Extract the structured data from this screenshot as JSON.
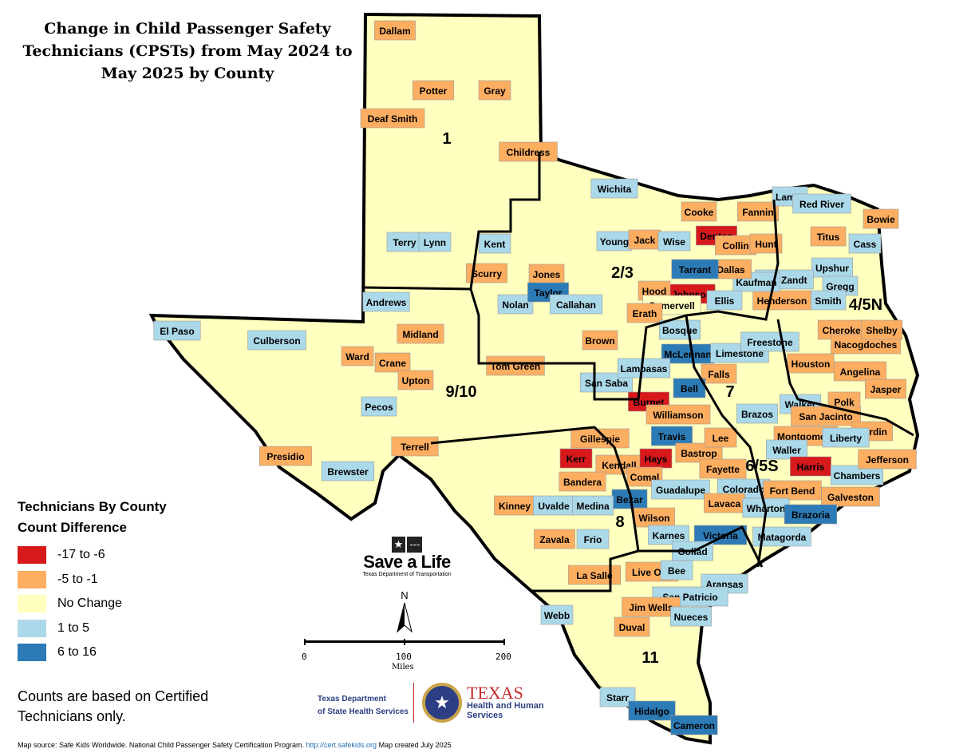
{
  "title": "Change in Child Passenger Safety Technicians (CPSTs) from May 2024 to May 2025 by County",
  "legend": {
    "title_line1": "Technicians By County",
    "title_line2": "Count Difference",
    "items": [
      {
        "label": "-17 to -6",
        "color": "#d7191c"
      },
      {
        "label": "-5 to -1",
        "color": "#fdae61"
      },
      {
        "label": "No Change",
        "color": "#ffffbf"
      },
      {
        "label": "1 to 5",
        "color": "#abd9e9"
      },
      {
        "label": "6 to 16",
        "color": "#2c7bb6"
      }
    ]
  },
  "note": "Counts are based on Certified Technicians only.",
  "source": {
    "text": "Map source: Safe Kids Worldwide. National Child Passenger Safety Certification Program.",
    "link": "http://cert.safekids.org",
    "created": "Map created July 2025"
  },
  "logos": {
    "save_a_life": "Save a Life",
    "save_a_life_sub": "Texas Department of Transportation",
    "dshs_line1": "Texas Department",
    "dshs_line2": "of State Health Services",
    "hhs_title": "TEXAS",
    "hhs_line1": "Health and Human",
    "hhs_line2": "Services"
  },
  "north_label": "N",
  "scale": {
    "ticks": [
      "0",
      "100",
      "200"
    ],
    "unit": "Miles"
  },
  "regions": [
    "1",
    "2/3",
    "4/5N",
    "9/10",
    "7",
    "6/5S",
    "8",
    "11"
  ],
  "counties": [
    {
      "name": "Dallam",
      "cat": 1
    },
    {
      "name": "Potter",
      "cat": 1
    },
    {
      "name": "Gray",
      "cat": 1
    },
    {
      "name": "Deaf Smith",
      "cat": 1
    },
    {
      "name": "Childress",
      "cat": 1
    },
    {
      "name": "Wichita",
      "cat": 3
    },
    {
      "name": "Terry",
      "cat": 3
    },
    {
      "name": "Lynn",
      "cat": 3
    },
    {
      "name": "Kent",
      "cat": 3
    },
    {
      "name": "Scurry",
      "cat": 1
    },
    {
      "name": "Jones",
      "cat": 1
    },
    {
      "name": "Young",
      "cat": 3
    },
    {
      "name": "Jack",
      "cat": 1
    },
    {
      "name": "Wise",
      "cat": 3
    },
    {
      "name": "Cooke",
      "cat": 1
    },
    {
      "name": "Denton",
      "cat": 0
    },
    {
      "name": "Collin",
      "cat": 1
    },
    {
      "name": "Fannin",
      "cat": 1
    },
    {
      "name": "Hunt",
      "cat": 1
    },
    {
      "name": "Lamar",
      "cat": 3
    },
    {
      "name": "Red River",
      "cat": 3
    },
    {
      "name": "Bowie",
      "cat": 1
    },
    {
      "name": "Titus",
      "cat": 1
    },
    {
      "name": "Cass",
      "cat": 3
    },
    {
      "name": "Upshur",
      "cat": 3
    },
    {
      "name": "Gregg",
      "cat": 3
    },
    {
      "name": "Smith",
      "cat": 3
    },
    {
      "name": "Van Zandt",
      "cat": 3
    },
    {
      "name": "Henderson",
      "cat": 1
    },
    {
      "name": "Kaufman",
      "cat": 3
    },
    {
      "name": "Dallas",
      "cat": 1
    },
    {
      "name": "Tarrant",
      "cat": 4
    },
    {
      "name": "Johnson",
      "cat": 0
    },
    {
      "name": "Ellis",
      "cat": 3
    },
    {
      "name": "Hood",
      "cat": 1
    },
    {
      "name": "Somervell",
      "cat": 2
    },
    {
      "name": "Erath",
      "cat": 1
    },
    {
      "name": "Andrews",
      "cat": 3
    },
    {
      "name": "Nolan",
      "cat": 3
    },
    {
      "name": "Taylor",
      "cat": 4
    },
    {
      "name": "Callahan",
      "cat": 3
    },
    {
      "name": "El Paso",
      "cat": 3
    },
    {
      "name": "Culberson",
      "cat": 3
    },
    {
      "name": "Midland",
      "cat": 1
    },
    {
      "name": "Ward",
      "cat": 1
    },
    {
      "name": "Crane",
      "cat": 1
    },
    {
      "name": "Upton",
      "cat": 1
    },
    {
      "name": "Tom Green",
      "cat": 1
    },
    {
      "name": "Brown",
      "cat": 1
    },
    {
      "name": "Bosque",
      "cat": 3
    },
    {
      "name": "McLennan",
      "cat": 4
    },
    {
      "name": "Limestone",
      "cat": 3
    },
    {
      "name": "Freestone",
      "cat": 3
    },
    {
      "name": "Cherokee",
      "cat": 1
    },
    {
      "name": "Nacogdoches",
      "cat": 1
    },
    {
      "name": "Shelby",
      "cat": 1
    },
    {
      "name": "Houston",
      "cat": 1
    },
    {
      "name": "Angelina",
      "cat": 1
    },
    {
      "name": "Jasper",
      "cat": 1
    },
    {
      "name": "Polk",
      "cat": 1
    },
    {
      "name": "San Saba",
      "cat": 3
    },
    {
      "name": "Lampasas",
      "cat": 3
    },
    {
      "name": "Falls",
      "cat": 1
    },
    {
      "name": "Bell",
      "cat": 4
    },
    {
      "name": "Burnet",
      "cat": 0
    },
    {
      "name": "Williamson",
      "cat": 1
    },
    {
      "name": "Brazos",
      "cat": 3
    },
    {
      "name": "Walker",
      "cat": 3
    },
    {
      "name": "San Jacinto",
      "cat": 1
    },
    {
      "name": "Hardin",
      "cat": 1
    },
    {
      "name": "Pecos",
      "cat": 3
    },
    {
      "name": "Presidio",
      "cat": 1
    },
    {
      "name": "Brewster",
      "cat": 3
    },
    {
      "name": "Terrell",
      "cat": 1
    },
    {
      "name": "Gillespie",
      "cat": 1
    },
    {
      "name": "Kerr",
      "cat": 0
    },
    {
      "name": "Kendall",
      "cat": 1
    },
    {
      "name": "Bandera",
      "cat": 1
    },
    {
      "name": "Travis",
      "cat": 4
    },
    {
      "name": "Hays",
      "cat": 0
    },
    {
      "name": "Bastrop",
      "cat": 1
    },
    {
      "name": "Lee",
      "cat": 1
    },
    {
      "name": "Fayette",
      "cat": 1
    },
    {
      "name": "Montgomery",
      "cat": 1
    },
    {
      "name": "Waller",
      "cat": 3
    },
    {
      "name": "Harris",
      "cat": 0
    },
    {
      "name": "Liberty",
      "cat": 3
    },
    {
      "name": "Chambers",
      "cat": 3
    },
    {
      "name": "Jefferson",
      "cat": 1
    },
    {
      "name": "Comal",
      "cat": 1
    },
    {
      "name": "Guadalupe",
      "cat": 3
    },
    {
      "name": "Bexar",
      "cat": 4
    },
    {
      "name": "Kinney",
      "cat": 1
    },
    {
      "name": "Uvalde",
      "cat": 3
    },
    {
      "name": "Medina",
      "cat": 3
    },
    {
      "name": "Colorado",
      "cat": 3
    },
    {
      "name": "Fort Bend",
      "cat": 1
    },
    {
      "name": "Galveston",
      "cat": 1
    },
    {
      "name": "Lavaca",
      "cat": 1
    },
    {
      "name": "Wharton",
      "cat": 3
    },
    {
      "name": "Brazoria",
      "cat": 4
    },
    {
      "name": "Wilson",
      "cat": 1
    },
    {
      "name": "Zavala",
      "cat": 1
    },
    {
      "name": "Frio",
      "cat": 3
    },
    {
      "name": "Karnes",
      "cat": 3
    },
    {
      "name": "Victoria",
      "cat": 4
    },
    {
      "name": "Goliad",
      "cat": 3
    },
    {
      "name": "Matagorda",
      "cat": 3
    },
    {
      "name": "La Salle",
      "cat": 1
    },
    {
      "name": "Live Oak",
      "cat": 1
    },
    {
      "name": "Bee",
      "cat": 3
    },
    {
      "name": "Aransas",
      "cat": 3
    },
    {
      "name": "San Patricio",
      "cat": 3
    },
    {
      "name": "Jim Wells",
      "cat": 1
    },
    {
      "name": "Nueces",
      "cat": 3
    },
    {
      "name": "Webb",
      "cat": 3
    },
    {
      "name": "Duval",
      "cat": 1
    },
    {
      "name": "Starr",
      "cat": 3
    },
    {
      "name": "Hidalgo",
      "cat": 4
    },
    {
      "name": "Cameron",
      "cat": 4
    }
  ]
}
